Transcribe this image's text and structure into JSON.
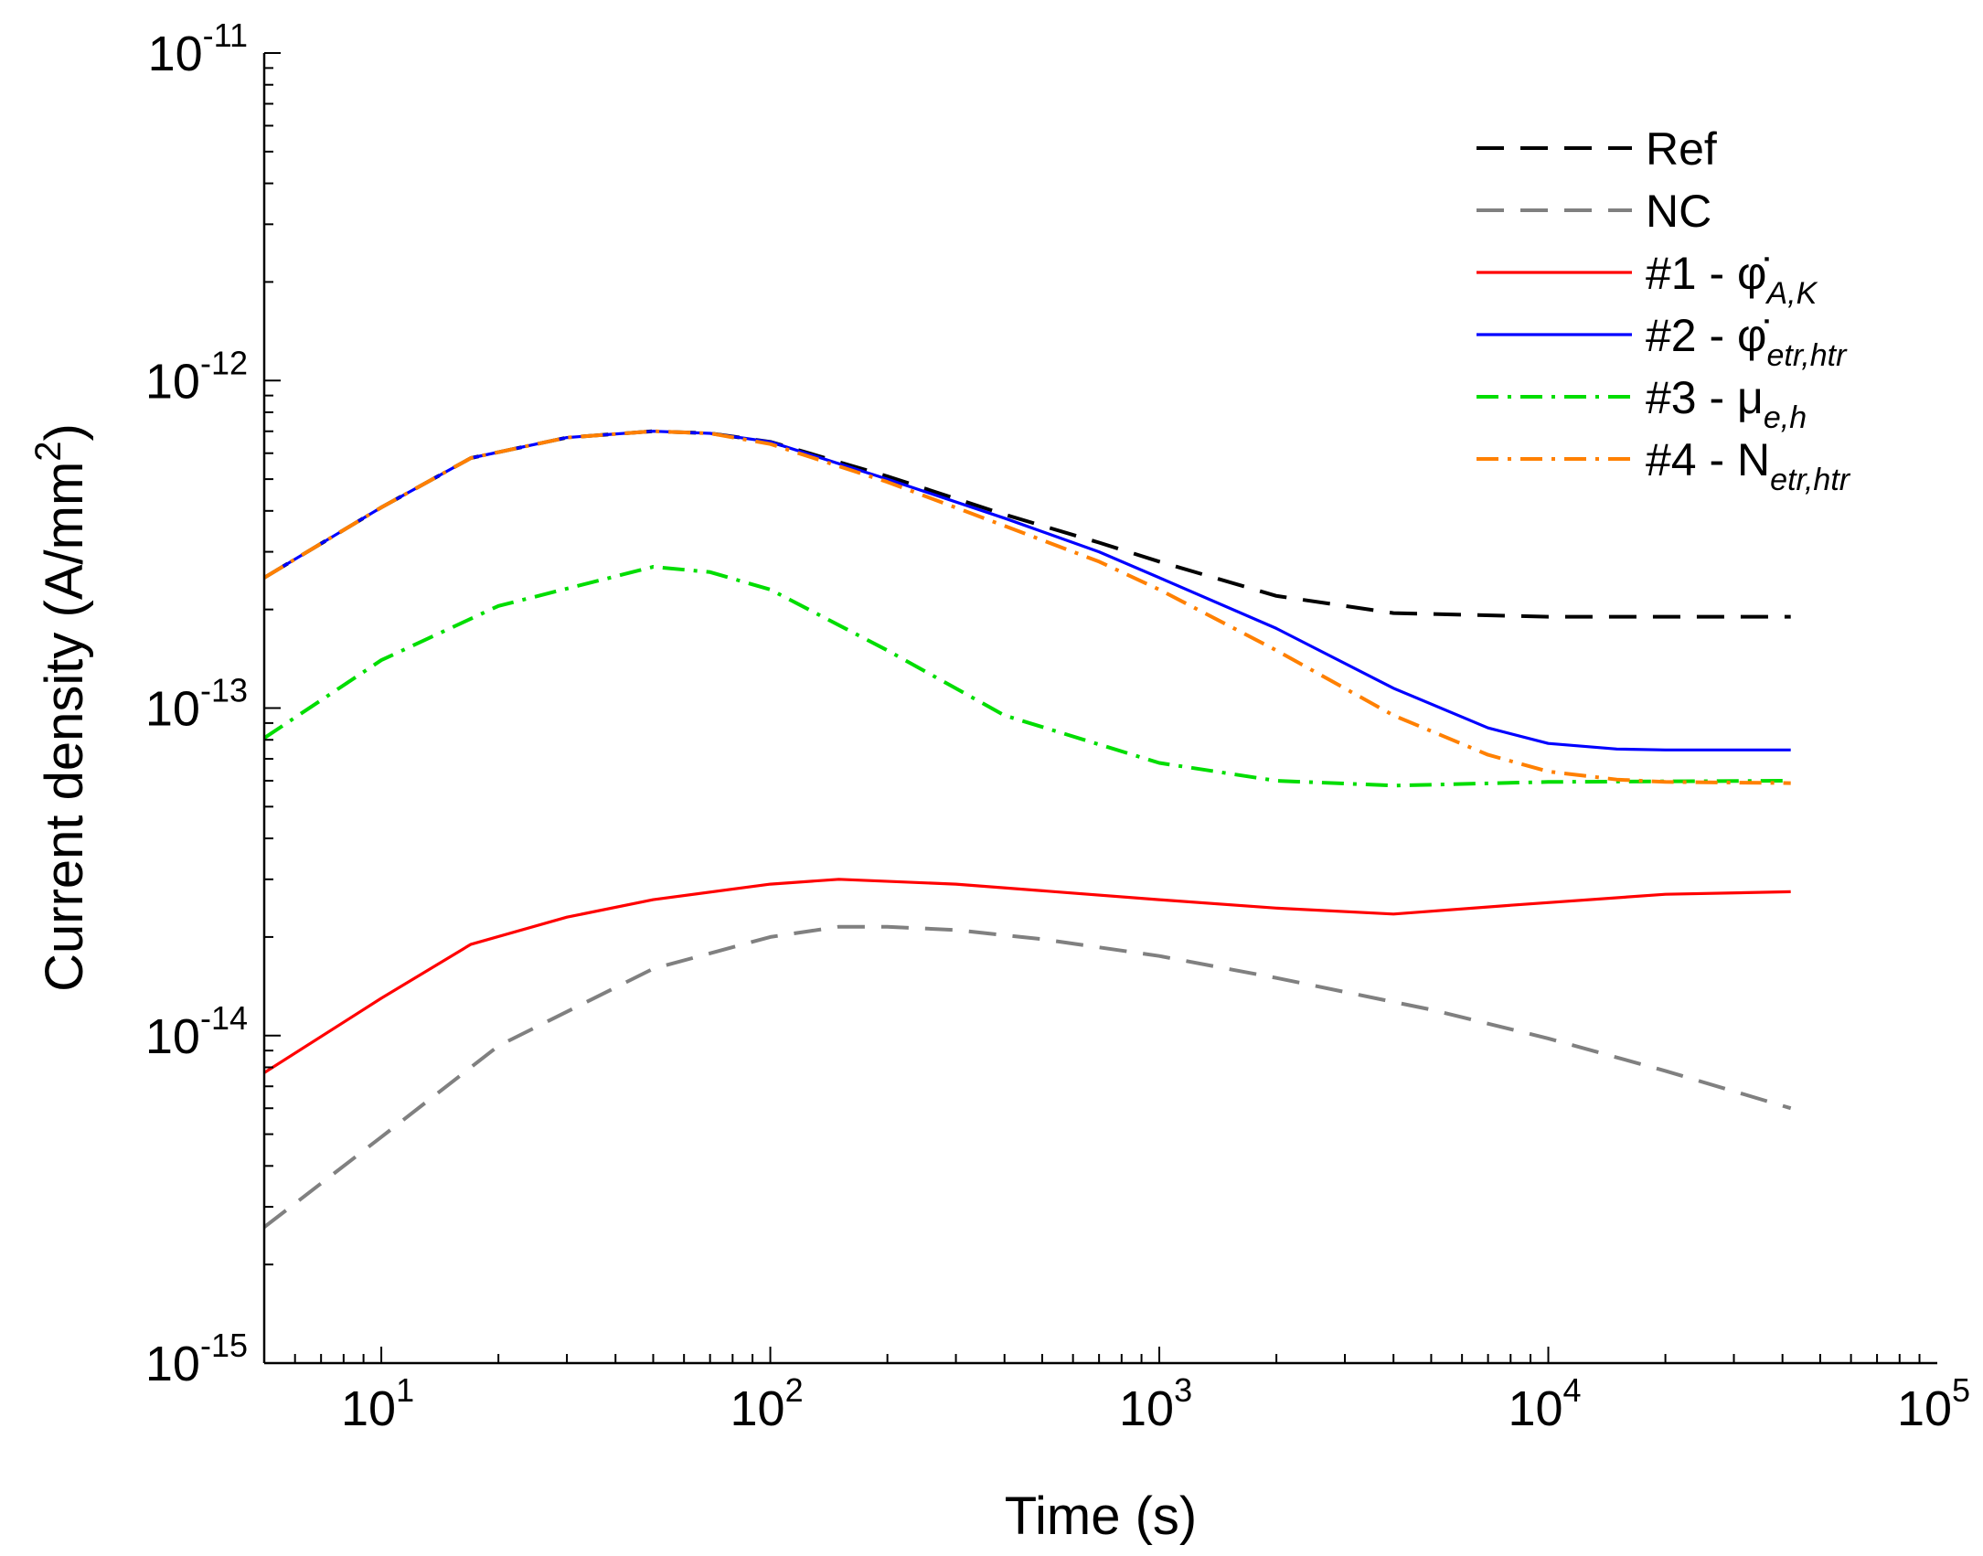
{
  "chart_data": {
    "type": "line",
    "title": "",
    "xlabel": "Time (s)",
    "ylabel": "Current density (A/mm²)",
    "ylabel_parts": {
      "main": "Current density (A/mm",
      "sup": "2",
      "end": ")"
    },
    "xscale": "log",
    "yscale": "log",
    "xlim": [
      5,
      100000
    ],
    "ylim": [
      1e-15,
      1e-11
    ],
    "grid": false,
    "legend_position": "top-right",
    "x_ticks": [
      {
        "value": 10,
        "base": "10",
        "exp": "1"
      },
      {
        "value": 100,
        "base": "10",
        "exp": "2"
      },
      {
        "value": 1000,
        "base": "10",
        "exp": "3"
      },
      {
        "value": 10000,
        "base": "10",
        "exp": "4"
      },
      {
        "value": 100000,
        "base": "10",
        "exp": "5"
      }
    ],
    "y_ticks": [
      {
        "value": 1e-15,
        "base": "10",
        "exp": "-15"
      },
      {
        "value": 1e-14,
        "base": "10",
        "exp": "-14"
      },
      {
        "value": 1e-13,
        "base": "10",
        "exp": "-13"
      },
      {
        "value": 1e-12,
        "base": "10",
        "exp": "-12"
      },
      {
        "value": 1e-11,
        "base": "10",
        "exp": "-11"
      }
    ],
    "series": [
      {
        "name": "Ref",
        "label": {
          "text": "Ref",
          "sub": ""
        },
        "color": "#000000",
        "style": "dashed",
        "x": [
          5,
          10,
          17,
          30,
          50,
          70,
          100,
          200,
          400,
          700,
          1000,
          2000,
          4000,
          10000,
          20000,
          42000
        ],
        "y": [
          2.5e-13,
          4.1e-13,
          5.8e-13,
          6.7e-13,
          7e-13,
          6.9e-13,
          6.5e-13,
          5.1e-13,
          3.9e-13,
          3.2e-13,
          2.8e-13,
          2.2e-13,
          1.95e-13,
          1.9e-13,
          1.9e-13,
          1.9e-13
        ]
      },
      {
        "name": "NC",
        "label": {
          "text": "NC",
          "sub": ""
        },
        "color": "#808080",
        "style": "dashed",
        "x": [
          5,
          10,
          20,
          50,
          100,
          150,
          200,
          300,
          500,
          1000,
          2000,
          5000,
          10000,
          20000,
          42000
        ],
        "y": [
          2.6e-15,
          4.9e-15,
          9.3e-15,
          1.6e-14,
          2e-14,
          2.15e-14,
          2.15e-14,
          2.1e-14,
          1.97e-14,
          1.75e-14,
          1.5e-14,
          1.2e-14,
          9.8e-15,
          7.8e-15,
          6e-15
        ]
      },
      {
        "name": "#1 - φ̇A,K",
        "label": {
          "text": "#1 - φ̇",
          "sub": "A,K"
        },
        "color": "#ff0000",
        "style": "solid",
        "x": [
          5,
          10,
          17,
          30,
          50,
          100,
          150,
          300,
          1000,
          2000,
          4000,
          8000,
          20000,
          42000
        ],
        "y": [
          7.7e-15,
          1.3e-14,
          1.9e-14,
          2.3e-14,
          2.6e-14,
          2.9e-14,
          3e-14,
          2.9e-14,
          2.6e-14,
          2.45e-14,
          2.35e-14,
          2.5e-14,
          2.7e-14,
          2.75e-14
        ]
      },
      {
        "name": "#2 - φ̇etr,htr",
        "label": {
          "text": "#2 - φ̇",
          "sub": "etr,htr"
        },
        "color": "#0000ff",
        "style": "solid",
        "x": [
          5,
          10,
          17,
          30,
          50,
          70,
          100,
          200,
          400,
          700,
          1000,
          2000,
          4000,
          7000,
          10000,
          15000,
          20000,
          42000
        ],
        "y": [
          2.5e-13,
          4.1e-13,
          5.8e-13,
          6.7e-13,
          7e-13,
          6.9e-13,
          6.5e-13,
          5e-13,
          3.8e-13,
          3e-13,
          2.5e-13,
          1.75e-13,
          1.15e-13,
          8.7e-14,
          7.8e-14,
          7.5e-14,
          7.45e-14,
          7.45e-14
        ]
      },
      {
        "name": "#3 - μe,h",
        "label": {
          "text": "#3 - μ",
          "sub": "e,h"
        },
        "color": "#00dd00",
        "style": "dashdot",
        "x": [
          5,
          10,
          20,
          50,
          70,
          100,
          200,
          400,
          1000,
          2000,
          4000,
          10000,
          42000
        ],
        "y": [
          8.1e-14,
          1.4e-13,
          2.05e-13,
          2.7e-13,
          2.6e-13,
          2.3e-13,
          1.5e-13,
          9.5e-14,
          6.8e-14,
          6e-14,
          5.8e-14,
          5.95e-14,
          6e-14
        ]
      },
      {
        "name": "#4 - Netr,htr",
        "label": {
          "text": "#4 - N",
          "sub": "etr,htr"
        },
        "color": "#ff8000",
        "style": "dashdot",
        "x": [
          5,
          10,
          17,
          30,
          50,
          70,
          100,
          200,
          400,
          700,
          1000,
          2000,
          4000,
          7000,
          10000,
          15000,
          20000,
          42000
        ],
        "y": [
          2.5e-13,
          4.1e-13,
          5.8e-13,
          6.7e-13,
          7e-13,
          6.9e-13,
          6.4e-13,
          4.9e-13,
          3.6e-13,
          2.8e-13,
          2.3e-13,
          1.5e-13,
          9.5e-14,
          7.2e-14,
          6.4e-14,
          6.05e-14,
          5.95e-14,
          5.9e-14
        ]
      }
    ]
  }
}
